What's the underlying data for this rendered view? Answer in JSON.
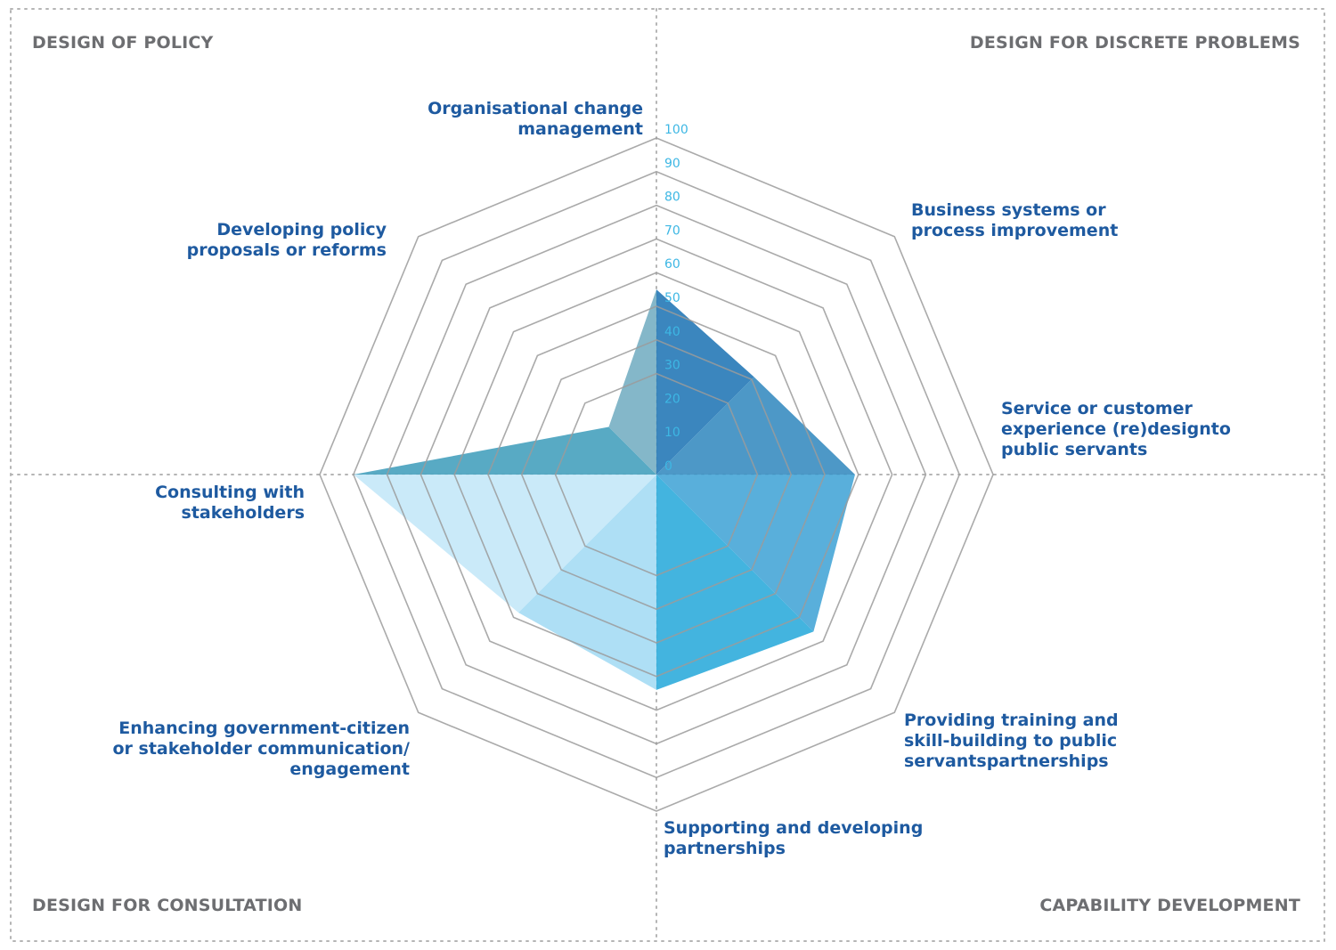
{
  "quadrants": {
    "top_left": "DESIGN OF POLICY",
    "top_right": "DESIGN FOR DISCRETE PROBLEMS",
    "bottom_left": "DESIGN FOR CONSULTATION",
    "bottom_right": "CAPABILITY DEVELOPMENT"
  },
  "colors": {
    "grid": "#9b9b9b",
    "divider": "#b5b5b5",
    "tick": "#3db7e4",
    "label": "#1e5aa0",
    "quadrant": "#6d6e71",
    "wedges": [
      "#2a7cb8",
      "#3e8fc2",
      "#4ba8d8",
      "#33aedc",
      "#a7dcf4",
      "#c6e8f8",
      "#4aa3bf",
      "#7ab1c4"
    ]
  },
  "chart_data": {
    "type": "radar",
    "title": "",
    "categories": [
      [
        "Organisational change",
        "management"
      ],
      [
        "Business systems or",
        "process improvement"
      ],
      [
        "Service or customer",
        "experience (re)designto",
        "public servants"
      ],
      [
        "Providing training and",
        "skill-building to public",
        "servantspartnerships"
      ],
      [
        "Supporting and developing",
        "partnerships"
      ],
      [
        "Enhancing government-citizen",
        "or stakeholder communication/",
        "engagement"
      ],
      [
        "Consulting with",
        "stakeholders"
      ],
      [
        "Developing policy",
        "proposals or reforms"
      ]
    ],
    "values": [
      55,
      41,
      59,
      66,
      64,
      58,
      90,
      20
    ],
    "ticks": [
      0,
      10,
      20,
      30,
      40,
      50,
      60,
      70,
      80,
      90,
      100
    ],
    "rings": [
      30,
      40,
      50,
      60,
      70,
      80,
      90,
      100
    ],
    "range": [
      0,
      100
    ]
  }
}
